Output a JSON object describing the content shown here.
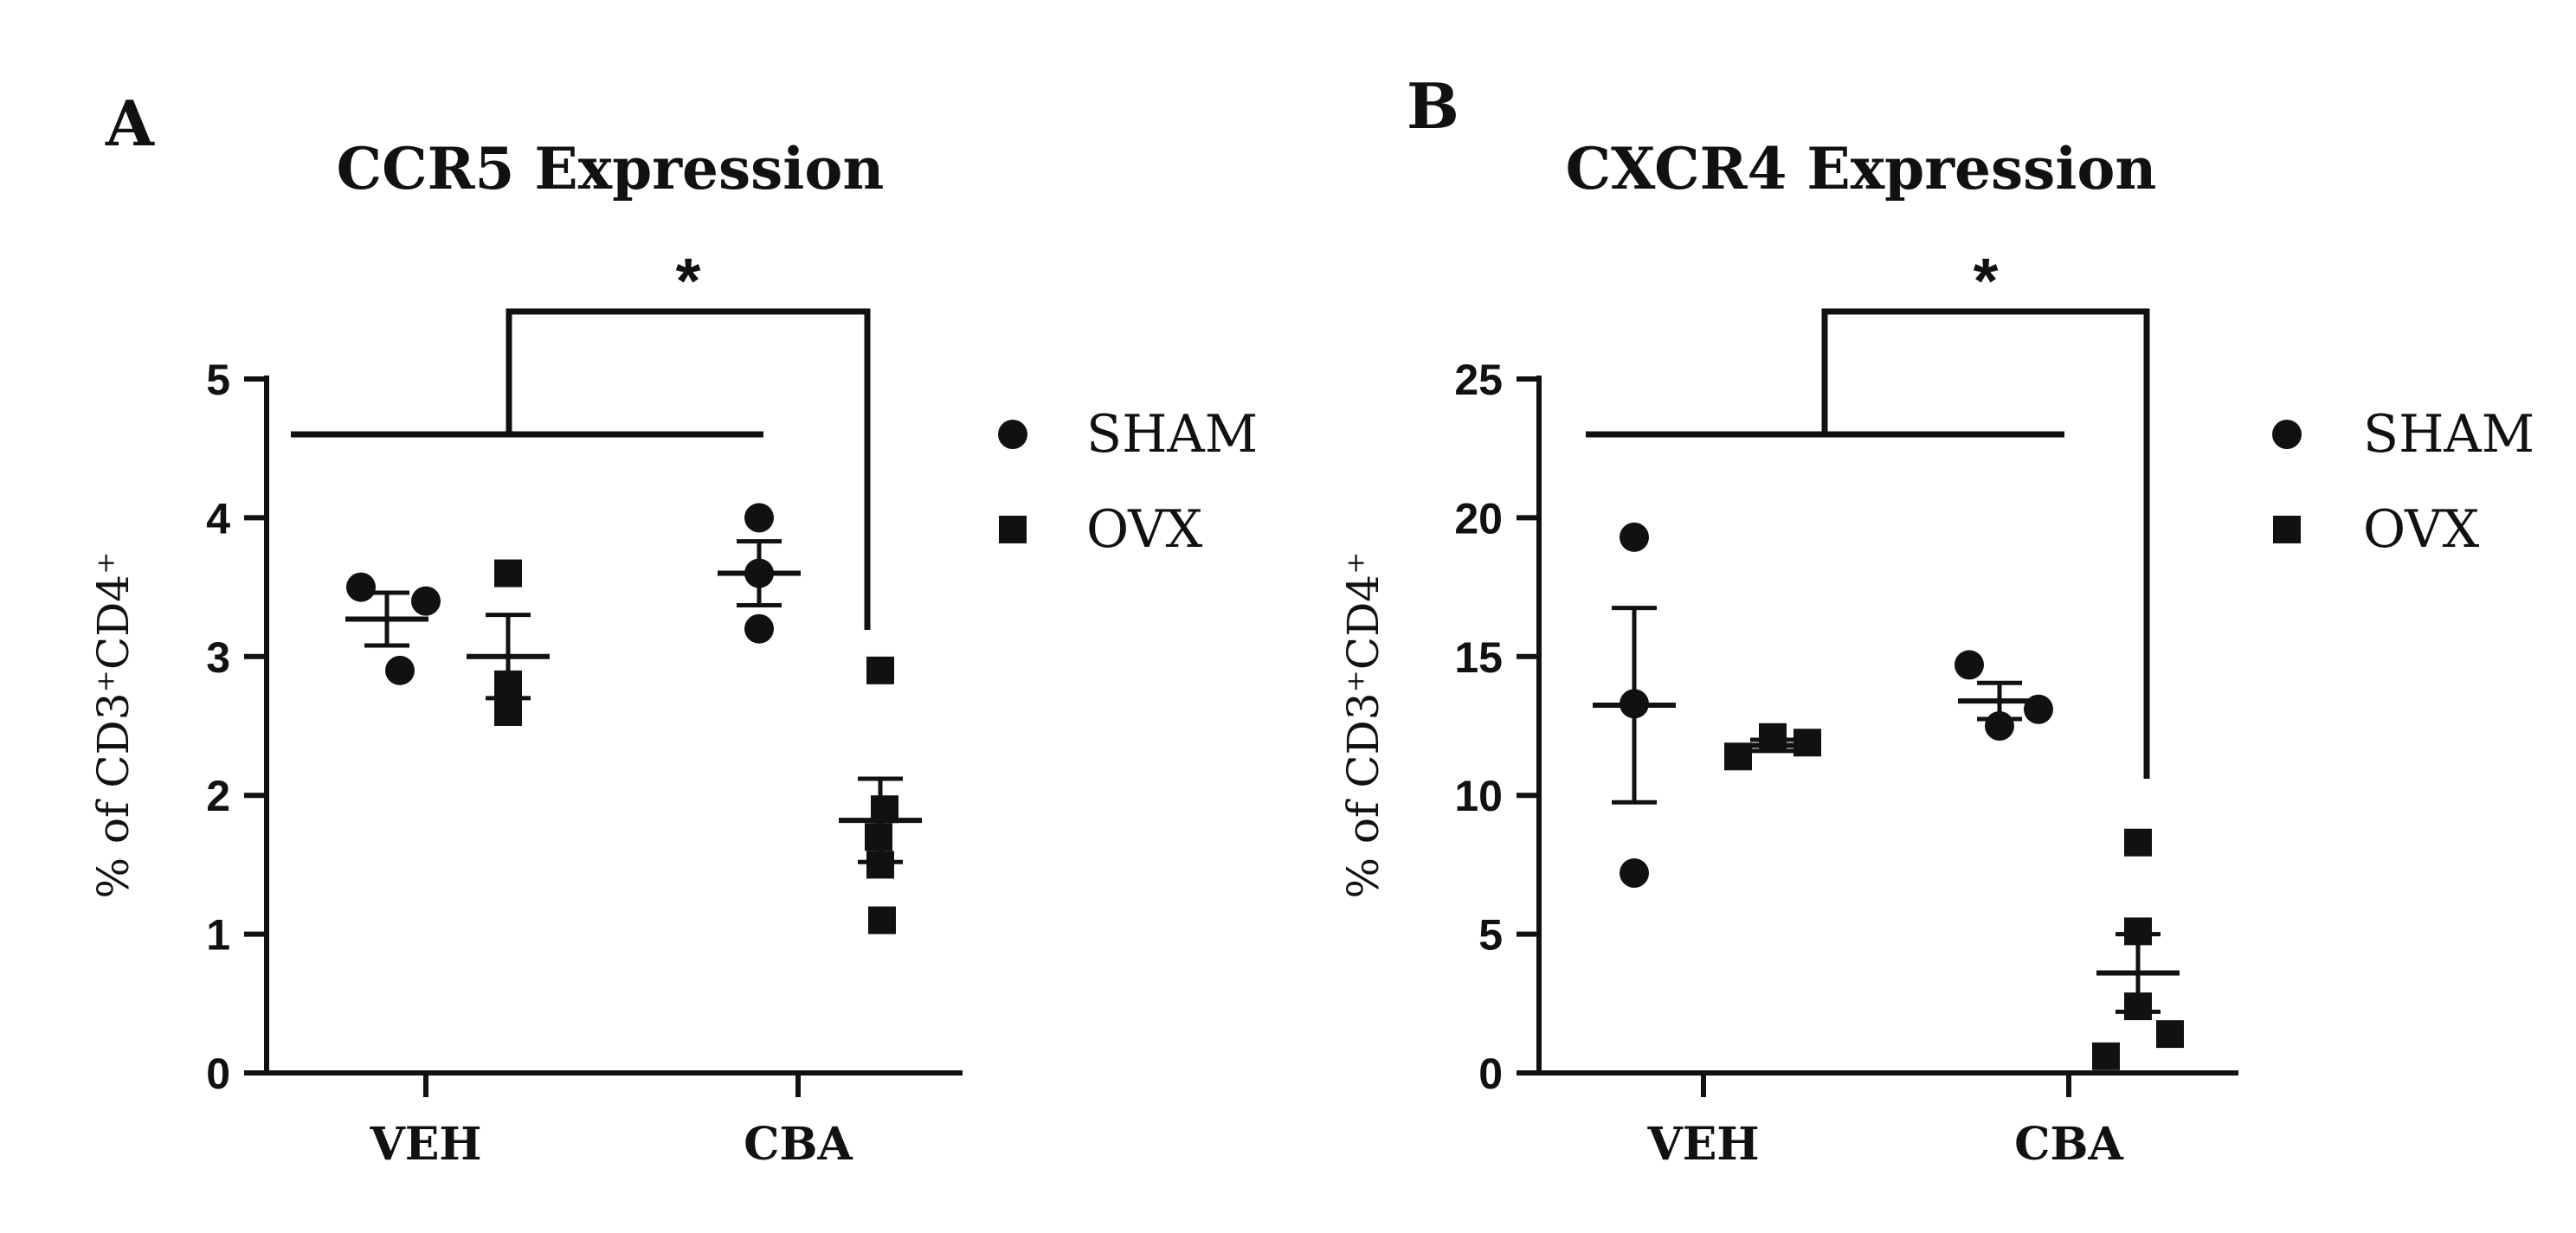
{
  "figure_colors": {
    "ink": "#111111",
    "background": "#ffffff"
  },
  "chart_data": [
    {
      "panel": "A",
      "type": "scatter",
      "title": "CCR5 Expression",
      "ylabel": "% of CD3⁺CD4⁺",
      "ylim": [
        0,
        5
      ],
      "yticks": [
        0,
        1,
        2,
        3,
        4,
        5
      ],
      "categories": [
        "VEH",
        "CBA"
      ],
      "significance": "*",
      "legend": [
        {
          "name": "SHAM",
          "marker": "circle"
        },
        {
          "name": "OVX",
          "marker": "square"
        }
      ],
      "groups": [
        {
          "category": "VEH",
          "series": "SHAM",
          "points": [
            3.5,
            2.9,
            3.4
          ],
          "mean": 3.27,
          "sem": 0.19
        },
        {
          "category": "VEH",
          "series": "OVX",
          "points": [
            3.6,
            2.6,
            2.8
          ],
          "mean": 3.0,
          "sem": 0.3
        },
        {
          "category": "CBA",
          "series": "SHAM",
          "points": [
            4.0,
            3.2,
            3.6
          ],
          "mean": 3.6,
          "sem": 0.23
        },
        {
          "category": "CBA",
          "series": "OVX",
          "points": [
            2.9,
            1.9,
            1.7,
            1.5,
            1.1
          ],
          "mean": 1.82,
          "sem": 0.3
        }
      ]
    },
    {
      "panel": "B",
      "type": "scatter",
      "title": "CXCR4 Expression",
      "ylabel": "% of CD3⁺CD4⁺",
      "ylim": [
        0,
        25
      ],
      "yticks": [
        0,
        5,
        10,
        15,
        20,
        25
      ],
      "categories": [
        "VEH",
        "CBA"
      ],
      "significance": "*",
      "legend": [
        {
          "name": "SHAM",
          "marker": "circle"
        },
        {
          "name": "OVX",
          "marker": "square"
        }
      ],
      "groups": [
        {
          "category": "VEH",
          "series": "SHAM",
          "points": [
            19.3,
            13.3,
            7.2
          ],
          "mean": 13.25,
          "sem": 3.5
        },
        {
          "category": "VEH",
          "series": "OVX",
          "points": [
            11.4,
            12.1,
            11.9
          ],
          "mean": 11.8,
          "sem": 0.2
        },
        {
          "category": "CBA",
          "series": "SHAM",
          "points": [
            14.7,
            12.5,
            13.1
          ],
          "mean": 13.4,
          "sem": 0.65
        },
        {
          "category": "CBA",
          "series": "OVX",
          "points": [
            8.3,
            5.1,
            2.4,
            1.4,
            0.6
          ],
          "mean": 3.6,
          "sem": 1.4
        }
      ]
    }
  ]
}
